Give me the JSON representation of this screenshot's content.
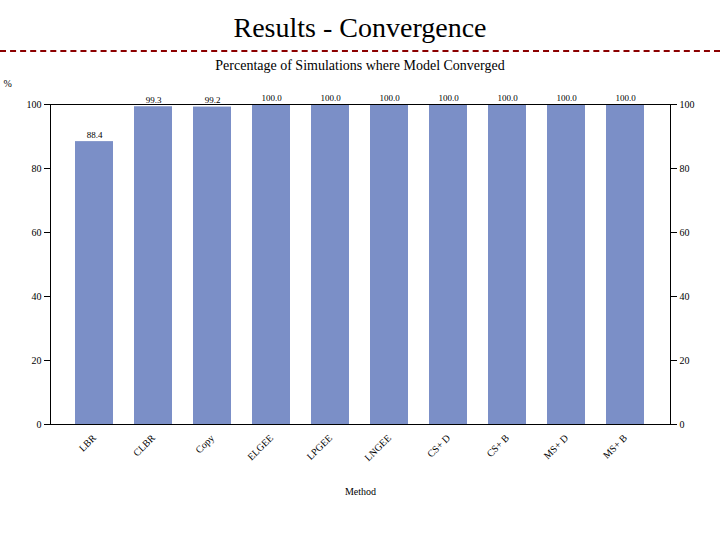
{
  "chart_data": {
    "type": "bar",
    "title": "Results - Convergence",
    "subtitle": "Percentage of Simulations where Model Converged",
    "categories": [
      "LBR",
      "CLBR",
      "Copy",
      "ELGEE",
      "LPGEE",
      "LNGEE",
      "CS+ D",
      "CS+ B",
      "MS+ D",
      "MS+ B"
    ],
    "values": [
      88.4,
      99.3,
      99.2,
      100.0,
      100.0,
      100.0,
      100.0,
      100.0,
      100.0,
      100.0
    ],
    "value_labels": [
      "88.4",
      "99.3",
      "99.2",
      "100.0",
      "100.0",
      "100.0",
      "100.0",
      "100.0",
      "100.0",
      "100.0"
    ],
    "data_labels": true,
    "color": "#7b8fc7",
    "xlabel": "Method",
    "ylabel": "%",
    "ylim": [
      0,
      100
    ],
    "yticks": [
      0,
      20,
      40,
      60,
      80,
      100
    ],
    "grid": false
  }
}
